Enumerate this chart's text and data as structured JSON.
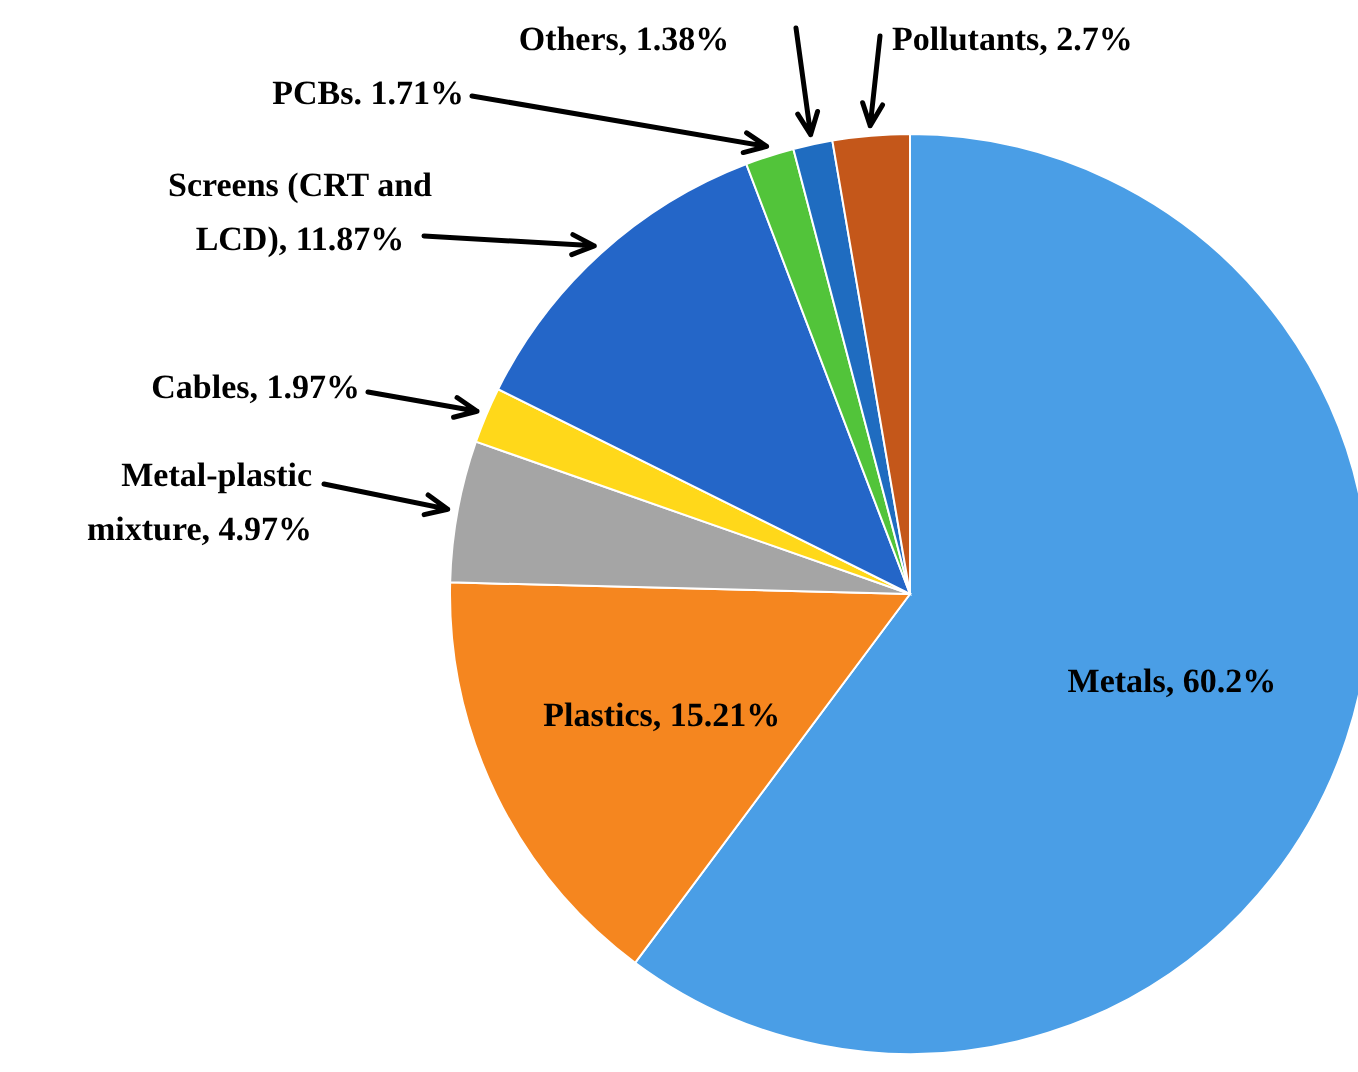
{
  "chart_data": {
    "type": "pie",
    "categories": [
      "Metals",
      "Plastics",
      "Metal-plastic mixture",
      "Cables",
      "Screens (CRT and LCD)",
      "PCBs.",
      "Others",
      "Pollutants"
    ],
    "values": [
      60.2,
      15.21,
      4.97,
      1.97,
      11.87,
      1.71,
      1.38,
      2.7
    ],
    "colors": [
      "#4a9ee6",
      "#f5861f",
      "#a5a5a5",
      "#ffd81a",
      "#2466c8",
      "#52c43a",
      "#1f6cc0",
      "#c4571a"
    ],
    "value_labels": [
      "60.2%",
      "15.21%",
      "4.97%",
      "1.97%",
      "11.87%",
      "1.71%",
      "1.38%",
      "2.7%"
    ],
    "legend": false
  }
}
